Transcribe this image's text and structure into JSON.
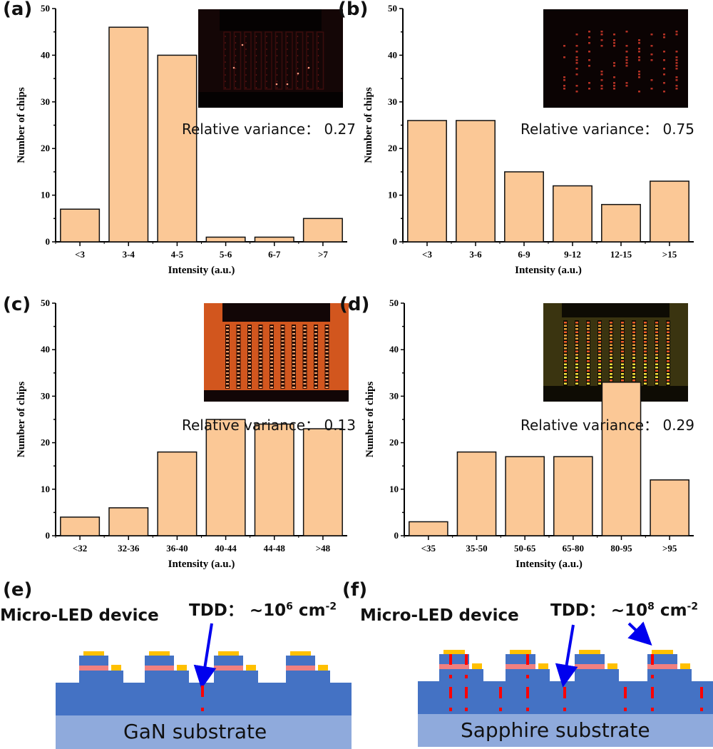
{
  "colors": {
    "bar_fill": "#FBC896",
    "bar_stroke": "#111111",
    "gan_blue": "#4472C4",
    "substrate_blue": "#8FAADC",
    "mqw_pink": "#F08080",
    "contact_gold": "#FFC000",
    "defect_red": "#FF0000",
    "arrow_blue": "#0000EE"
  },
  "chart_data": [
    {
      "panel": "(a)",
      "type": "bar",
      "categories": [
        "<3",
        "3-4",
        "4-5",
        "5-6",
        "6-7",
        ">7"
      ],
      "values": [
        7,
        46,
        40,
        1,
        1,
        5
      ],
      "xlabel": "Intensity (a.u.)",
      "ylabel": "Number of chips",
      "ylim": [
        0,
        50
      ],
      "yticks": [
        0,
        10,
        20,
        30,
        40,
        50
      ],
      "annotation": "Relative variance：  0.27",
      "inset": "dark-red-emission-image"
    },
    {
      "panel": "(b)",
      "type": "bar",
      "categories": [
        "<3",
        "3-6",
        "6-9",
        "9-12",
        "12-15",
        ">15"
      ],
      "values": [
        26,
        26,
        15,
        12,
        8,
        13
      ],
      "xlabel": "Intensity (a.u.)",
      "ylabel": "Number of chips",
      "ylim": [
        0,
        50
      ],
      "yticks": [
        0,
        10,
        20,
        30,
        40,
        50
      ],
      "annotation": "Relative variance：  0.75",
      "inset": "dark-sparse-emission-image"
    },
    {
      "panel": "(c)",
      "type": "bar",
      "categories": [
        "<32",
        "32-36",
        "36-40",
        "40-44",
        "44-48",
        ">48"
      ],
      "values": [
        4,
        6,
        18,
        25,
        24,
        23
      ],
      "xlabel": "Intensity (a.u.)",
      "ylabel": "Number of chips",
      "ylim": [
        0,
        50
      ],
      "yticks": [
        0,
        10,
        20,
        30,
        40,
        50
      ],
      "annotation": "Relative variance：  0.13",
      "inset": "orange-uniform-emission-image"
    },
    {
      "panel": "(d)",
      "type": "bar",
      "categories": [
        "<35",
        "35-50",
        "50-65",
        "65-80",
        "80-95",
        ">95"
      ],
      "values": [
        3,
        18,
        17,
        17,
        33,
        12
      ],
      "xlabel": "Intensity (a.u.)",
      "ylabel": "Number of chips",
      "ylim": [
        0,
        50
      ],
      "yticks": [
        0,
        10,
        20,
        30,
        40,
        50
      ],
      "annotation": "Relative variance：  0.29",
      "inset": "yellow-emission-image"
    }
  ],
  "diagrams": [
    {
      "panel": "(e)",
      "device_label": "Micro-LED device",
      "tdd_prefix": "TDD：  ~10",
      "tdd_exp": "6",
      "tdd_unit": " cm",
      "tdd_unit_exp": "-2",
      "substrate": "GaN substrate"
    },
    {
      "panel": "(f)",
      "device_label": "Micro-LED device",
      "tdd_prefix": "TDD：  ~10",
      "tdd_exp": "8",
      "tdd_unit": " cm",
      "tdd_unit_exp": "-2",
      "substrate": "Sapphire substrate"
    }
  ]
}
